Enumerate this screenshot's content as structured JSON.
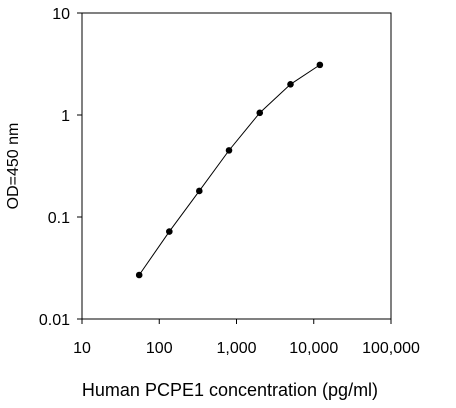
{
  "chart_data": {
    "type": "line",
    "xlabel": "Human PCPE1 concentration (pg/ml)",
    "ylabel": "OD=450 nm",
    "x_scale": "log",
    "y_scale": "log",
    "xlim": [
      10,
      100000
    ],
    "ylim": [
      0.01,
      10
    ],
    "x_ticks": [
      10,
      100,
      1000,
      10000,
      100000
    ],
    "x_tick_labels": [
      "10",
      "100",
      "1,000",
      "10,000",
      "100,000"
    ],
    "y_ticks": [
      0.01,
      0.1,
      1,
      10
    ],
    "y_tick_labels": [
      "0.01",
      "0.1",
      "1",
      "10"
    ],
    "grid": false,
    "legend": "none",
    "marker_color": "#000000",
    "series": [
      {
        "x": [
          55,
          135,
          330,
          800,
          2000,
          5000,
          12000
        ],
        "y": [
          0.027,
          0.072,
          0.18,
          0.45,
          1.05,
          2.0,
          3.1
        ]
      }
    ]
  }
}
